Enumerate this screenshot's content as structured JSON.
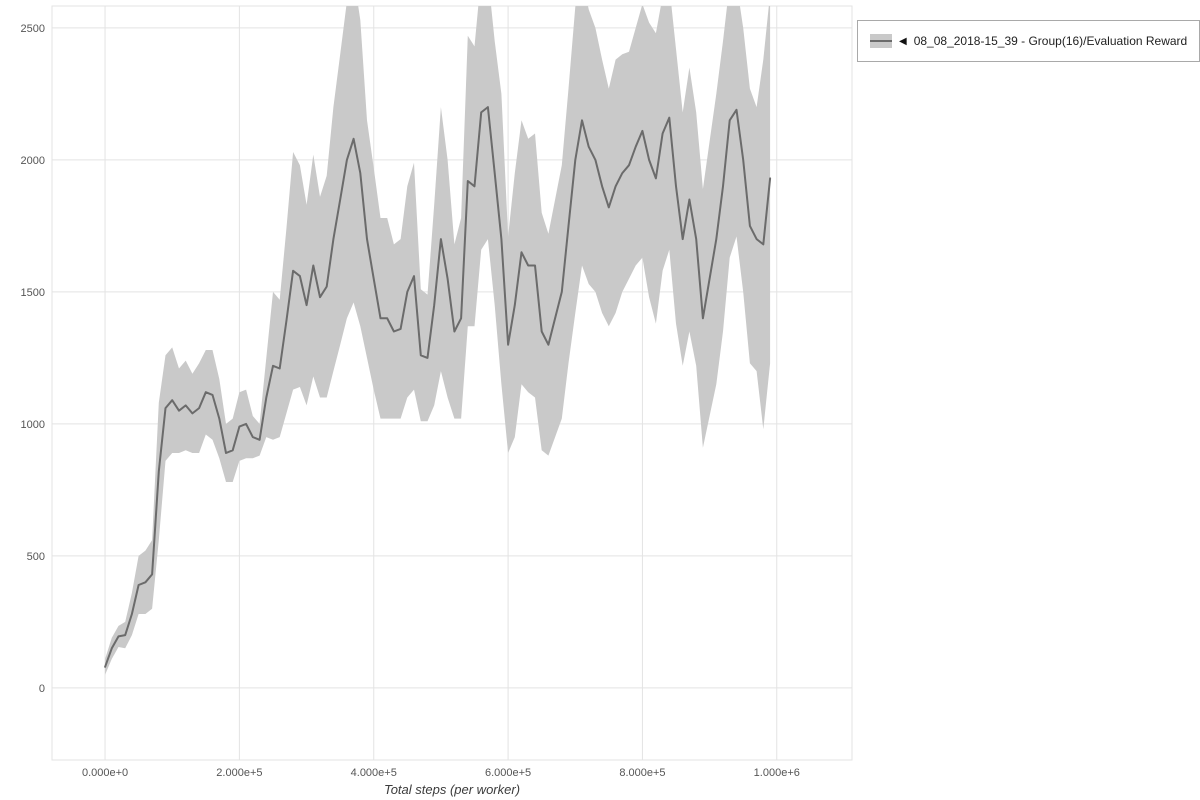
{
  "legend": {
    "marker": "◀",
    "label": "08_08_2018-15_39 - Group(16)/Evaluation Reward"
  },
  "chart_data": {
    "type": "line",
    "title": "",
    "xlabel": "Total steps (per worker)",
    "ylabel": "",
    "grid": true,
    "legend_position": "top-right",
    "xlim": [
      -79000,
      1112000
    ],
    "ylim": [
      -273,
      2583
    ],
    "x_ticks": [
      0,
      200000,
      400000,
      600000,
      800000,
      1000000
    ],
    "x_tick_labels": [
      "0.000e+0",
      "2.000e+5",
      "4.000e+5",
      "6.000e+5",
      "8.000e+5",
      "1.000e+6"
    ],
    "y_ticks": [
      0,
      500,
      1000,
      1500,
      2000,
      2500
    ],
    "y_tick_labels": [
      "0",
      "500",
      "1000",
      "1500",
      "2000",
      "2500"
    ],
    "colors": {
      "line": "#6b6b6b",
      "band": "#c9c9c9",
      "grid": "#e3e3e3",
      "tick_text": "#555555",
      "axis_title": "#3c3c3c"
    },
    "series": [
      {
        "name": "08_08_2018-15_39 - Group(16)/Evaluation Reward",
        "x": [
          0,
          10000,
          20000,
          30000,
          40000,
          50000,
          60000,
          70000,
          80000,
          90000,
          100000,
          110000,
          120000,
          130000,
          140000,
          150000,
          160000,
          170000,
          180000,
          190000,
          200000,
          210000,
          220000,
          230000,
          240000,
          250000,
          260000,
          270000,
          280000,
          290000,
          300000,
          310000,
          320000,
          330000,
          340000,
          350000,
          360000,
          370000,
          380000,
          390000,
          400000,
          410000,
          420000,
          430000,
          440000,
          450000,
          460000,
          470000,
          480000,
          490000,
          500000,
          510000,
          520000,
          530000,
          540000,
          550000,
          560000,
          570000,
          580000,
          590000,
          600000,
          610000,
          620000,
          630000,
          640000,
          650000,
          660000,
          670000,
          680000,
          690000,
          700000,
          710000,
          720000,
          730000,
          740000,
          750000,
          760000,
          770000,
          780000,
          790000,
          800000,
          810000,
          820000,
          830000,
          840000,
          850000,
          860000,
          870000,
          880000,
          890000,
          900000,
          910000,
          920000,
          930000,
          940000,
          950000,
          960000,
          970000,
          980000,
          990000
        ],
        "mean": [
          80,
          150,
          195,
          200,
          280,
          390,
          400,
          430,
          820,
          1060,
          1090,
          1050,
          1070,
          1040,
          1060,
          1120,
          1110,
          1020,
          890,
          900,
          990,
          1000,
          950,
          940,
          1100,
          1220,
          1210,
          1390,
          1580,
          1560,
          1450,
          1600,
          1480,
          1520,
          1700,
          1850,
          2000,
          2080,
          1950,
          1700,
          1550,
          1400,
          1400,
          1350,
          1360,
          1500,
          1560,
          1260,
          1250,
          1450,
          1700,
          1550,
          1350,
          1400,
          1920,
          1900,
          2180,
          2200,
          1950,
          1700,
          1300,
          1450,
          1650,
          1600,
          1600,
          1350,
          1300,
          1400,
          1500,
          1750,
          2000,
          2150,
          2050,
          2000,
          1900,
          1820,
          1900,
          1950,
          1980,
          2050,
          2110,
          2000,
          1930,
          2100,
          2160,
          1900,
          1700,
          1850,
          1700,
          1400,
          1550,
          1700,
          1900,
          2150,
          2190,
          2000,
          1750,
          1700,
          1680,
          1930
        ],
        "lower": [
          50,
          110,
          155,
          150,
          200,
          280,
          280,
          300,
          560,
          860,
          890,
          890,
          900,
          890,
          890,
          960,
          940,
          870,
          780,
          780,
          860,
          870,
          870,
          880,
          950,
          940,
          950,
          1040,
          1130,
          1140,
          1070,
          1180,
          1100,
          1100,
          1200,
          1300,
          1400,
          1460,
          1370,
          1250,
          1130,
          1020,
          1020,
          1020,
          1020,
          1100,
          1130,
          1010,
          1010,
          1070,
          1200,
          1100,
          1020,
          1020,
          1370,
          1370,
          1660,
          1700,
          1450,
          1150,
          890,
          950,
          1150,
          1120,
          1100,
          900,
          880,
          950,
          1020,
          1230,
          1420,
          1600,
          1530,
          1500,
          1420,
          1370,
          1420,
          1500,
          1550,
          1600,
          1630,
          1480,
          1380,
          1580,
          1660,
          1380,
          1220,
          1350,
          1220,
          910,
          1030,
          1150,
          1350,
          1630,
          1710,
          1500,
          1230,
          1200,
          980,
          1230
        ],
        "upper": [
          110,
          190,
          235,
          250,
          360,
          500,
          520,
          560,
          1080,
          1260,
          1290,
          1210,
          1240,
          1190,
          1230,
          1280,
          1280,
          1170,
          1000,
          1020,
          1120,
          1130,
          1030,
          1000,
          1250,
          1500,
          1470,
          1740,
          2030,
          1980,
          1830,
          2020,
          1860,
          1940,
          2200,
          2400,
          2600,
          2700,
          2530,
          2150,
          1970,
          1780,
          1780,
          1680,
          1700,
          1900,
          1990,
          1510,
          1490,
          1830,
          2200,
          2000,
          1680,
          1780,
          2470,
          2430,
          2700,
          2700,
          2450,
          2250,
          1710,
          1950,
          2150,
          2080,
          2100,
          1800,
          1720,
          1850,
          1980,
          2270,
          2580,
          2700,
          2570,
          2500,
          2380,
          2270,
          2380,
          2400,
          2410,
          2500,
          2590,
          2520,
          2480,
          2620,
          2660,
          2420,
          2180,
          2350,
          2180,
          1890,
          2070,
          2250,
          2450,
          2670,
          2670,
          2500,
          2270,
          2200,
          2380,
          2630
        ]
      }
    ]
  }
}
